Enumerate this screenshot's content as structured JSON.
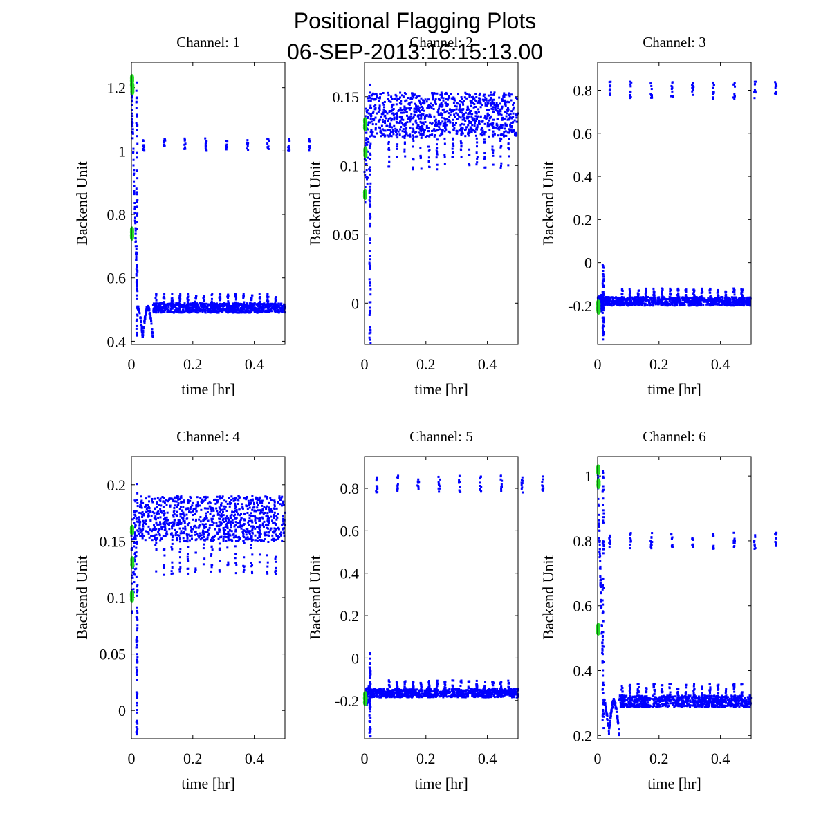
{
  "figure": {
    "title_line1": "Positional Flagging Plots",
    "title_line2": "06-SEP-2013:16:15:13.00"
  },
  "colors": {
    "data": "#0000ff",
    "flagged": "#22dd22",
    "axes": "#000000"
  },
  "chart_data": [
    {
      "type": "scatter",
      "title": "Channel: 1",
      "xlabel": "time [hr]",
      "ylabel": "Backend Unit",
      "xlim": [
        0,
        0.5
      ],
      "ylim": [
        0.39,
        1.28
      ],
      "xticks": [
        "0",
        "0.2",
        "0.4"
      ],
      "yticks": [
        "0.4",
        "0.6",
        "0.8",
        "1",
        "1.2"
      ],
      "yticks_values": [
        0.4,
        0.6,
        0.8,
        1.0,
        1.2
      ],
      "profile": "drop",
      "start": 1.22,
      "floor": 0.415,
      "baseline": 0.505,
      "band_halfwidth": 0.015,
      "high_cluster": 1.02,
      "high_cluster_spread": 0.02,
      "flagged_points": [
        [
          0.002,
          1.22
        ],
        [
          0.002,
          0.74
        ],
        [
          0.003,
          1.2
        ]
      ]
    },
    {
      "type": "scatter",
      "title": "Channel: 2",
      "xlabel": "time [hr]",
      "ylabel": "Backend Unit",
      "xlim": [
        0,
        0.5
      ],
      "ylim": [
        -0.03,
        0.175
      ],
      "xticks": [
        "0",
        "0.2",
        "0.4"
      ],
      "yticks": [
        "0",
        "0.05",
        "0.1",
        "0.15"
      ],
      "yticks_values": [
        0,
        0.05,
        0.1,
        0.15
      ],
      "profile": "rise",
      "start": 0.1,
      "baseline": 0.137,
      "band_halfwidth": 0.016,
      "dip_depth": 0.04,
      "spike_min": -0.03,
      "flagged_points": [
        [
          0.002,
          0.13
        ],
        [
          0.002,
          0.08
        ],
        [
          0.003,
          0.11
        ]
      ]
    },
    {
      "type": "scatter",
      "title": "Channel: 3",
      "xlabel": "time [hr]",
      "ylabel": "Backend Unit",
      "xlim": [
        0,
        0.5
      ],
      "ylim": [
        -0.38,
        0.93
      ],
      "xticks": [
        "0",
        "0.2",
        "0.4"
      ],
      "yticks": [
        "-0.2",
        "0",
        "0.2",
        "0.4",
        "0.6",
        "0.8"
      ],
      "yticks_values": [
        -0.2,
        0,
        0.2,
        0.4,
        0.6,
        0.8
      ],
      "profile": "flat",
      "start": -0.2,
      "baseline": -0.18,
      "band_halfwidth": 0.02,
      "high_cluster": 0.8,
      "high_cluster_spread": 0.04,
      "spike_max": 0.0,
      "spike_min": -0.36,
      "flagged_points": [
        [
          0.002,
          -0.2
        ],
        [
          0.003,
          -0.21
        ]
      ]
    },
    {
      "type": "scatter",
      "title": "Channel: 4",
      "xlabel": "time [hr]",
      "ylabel": "Backend Unit",
      "xlim": [
        0,
        0.5
      ],
      "ylim": [
        -0.025,
        0.225
      ],
      "xticks": [
        "0",
        "0.2",
        "0.4"
      ],
      "yticks": [
        "0",
        "0.05",
        "0.1",
        "0.15",
        "0.2"
      ],
      "yticks_values": [
        0,
        0.05,
        0.1,
        0.15,
        0.2
      ],
      "profile": "rise",
      "start": 0.12,
      "baseline": 0.17,
      "band_halfwidth": 0.02,
      "dip_depth": 0.05,
      "spike_min": -0.025,
      "flagged_points": [
        [
          0.002,
          0.16
        ],
        [
          0.002,
          0.1
        ],
        [
          0.003,
          0.13
        ]
      ]
    },
    {
      "type": "scatter",
      "title": "Channel: 5",
      "xlabel": "time [hr]",
      "ylabel": "Backend Unit",
      "xlim": [
        0,
        0.5
      ],
      "ylim": [
        -0.38,
        0.95
      ],
      "xticks": [
        "0",
        "0.2",
        "0.4"
      ],
      "yticks": [
        "-0.2",
        "0",
        "0.2",
        "0.4",
        "0.6",
        "0.8"
      ],
      "yticks_values": [
        -0.2,
        0,
        0.2,
        0.4,
        0.6,
        0.8
      ],
      "profile": "flat",
      "start": -0.19,
      "baseline": -0.165,
      "band_halfwidth": 0.02,
      "high_cluster": 0.82,
      "high_cluster_spread": 0.04,
      "spike_max": 0.03,
      "spike_min": -0.37,
      "flagged_points": [
        [
          0.002,
          -0.19
        ],
        [
          0.003,
          -0.2
        ]
      ]
    },
    {
      "type": "scatter",
      "title": "Channel: 6",
      "xlabel": "time [hr]",
      "ylabel": "Backend Unit",
      "xlim": [
        0,
        0.5
      ],
      "ylim": [
        0.19,
        1.06
      ],
      "xticks": [
        "0",
        "0.2",
        "0.4"
      ],
      "yticks": [
        "0.2",
        "0.4",
        "0.6",
        "0.8",
        "1"
      ],
      "yticks_values": [
        0.2,
        0.4,
        0.6,
        0.8,
        1.0
      ],
      "profile": "drop",
      "start": 1.02,
      "floor": 0.21,
      "baseline": 0.305,
      "band_halfwidth": 0.018,
      "high_cluster": 0.8,
      "high_cluster_spread": 0.025,
      "flagged_points": [
        [
          0.002,
          1.02
        ],
        [
          0.002,
          0.53
        ],
        [
          0.003,
          0.98
        ]
      ]
    }
  ]
}
